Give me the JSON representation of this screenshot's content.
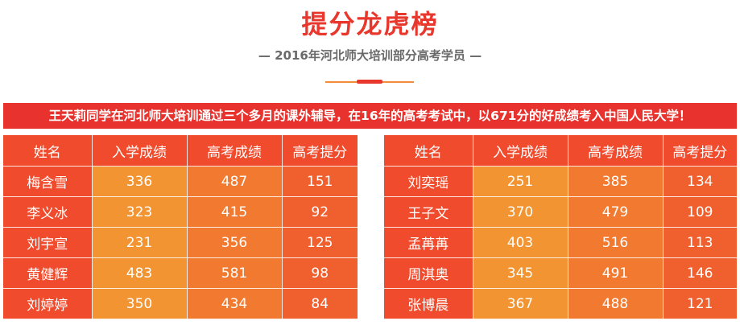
{
  "title": "提分龙虎榜",
  "subtitle": "— 2016年河北师大培训部分高考学员 —",
  "banner": "王天莉同学在河北师大培训通过三个多月的课外辅导，在16年的高考考试中，以671分的好成绩考入中国人民大学！",
  "colors": {
    "accent_red": "#e8382d",
    "orange": "#f29432",
    "deep_orange": "#f0602e"
  },
  "headers": [
    "姓名",
    "入学成绩",
    "高考成绩",
    "高考提分"
  ],
  "left_rows": [
    [
      "梅含雪",
      "336",
      "487",
      "151"
    ],
    [
      "李义冰",
      "323",
      "415",
      "92"
    ],
    [
      "刘宇宣",
      "231",
      "356",
      "125"
    ],
    [
      "黄健辉",
      "483",
      "581",
      "98"
    ],
    [
      "刘婷婷",
      "350",
      "434",
      "84"
    ]
  ],
  "right_rows": [
    [
      "刘奕瑶",
      "251",
      "385",
      "134"
    ],
    [
      "王子文",
      "370",
      "479",
      "109"
    ],
    [
      "孟苒苒",
      "403",
      "516",
      "113"
    ],
    [
      "周淇奥",
      "345",
      "491",
      "146"
    ],
    [
      "张博晨",
      "367",
      "488",
      "121"
    ]
  ]
}
